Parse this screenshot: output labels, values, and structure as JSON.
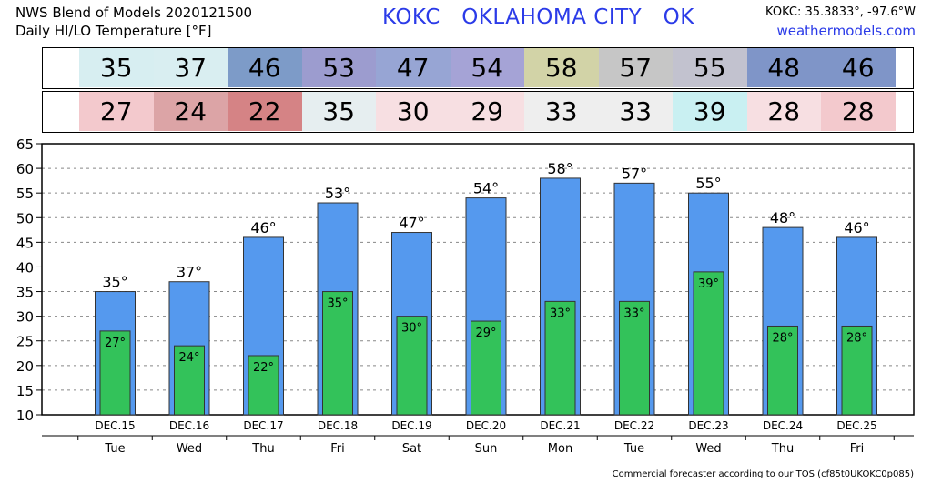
{
  "header": {
    "line1": "NWS Blend of Models 2020121500",
    "line2": "Daily HI/LO Temperature [°F]",
    "station": "KOKC   OKLAHOMA CITY   OK",
    "coords": "KOKC: 35.3833°, -97.6°W",
    "site": "weathermodels.com"
  },
  "colors": {
    "hi_bar": "#5599ee",
    "lo_bar": "#33c25a",
    "hi_cells": [
      "#d7eef1",
      "#d9eef1",
      "#7d9bc8",
      "#9c9ccf",
      "#97a5d4",
      "#a5a3d6",
      "#d2d3a7",
      "#c6c6c6",
      "#c2c2cf",
      "#7f95c8",
      "#7f95c8"
    ],
    "lo_cells": [
      "#f3c9cd",
      "#dca4a6",
      "#d58385",
      "#e6eef0",
      "#f7dfe2",
      "#f7dfe2",
      "#eeeeee",
      "#eeeeee",
      "#c9f0f2",
      "#f7dfe2",
      "#f3c9cd"
    ]
  },
  "hi_strip": [
    "35",
    "37",
    "46",
    "53",
    "47",
    "54",
    "58",
    "57",
    "55",
    "48",
    "46"
  ],
  "lo_strip": [
    "27",
    "24",
    "22",
    "35",
    "30",
    "29",
    "33",
    "33",
    "39",
    "28",
    "28"
  ],
  "chart_data": {
    "type": "bar",
    "categories": [
      "DEC.15",
      "DEC.16",
      "DEC.17",
      "DEC.18",
      "DEC.19",
      "DEC.20",
      "DEC.21",
      "DEC.22",
      "DEC.23",
      "DEC.24",
      "DEC.25"
    ],
    "weekdays": [
      "Tue",
      "Wed",
      "Thu",
      "Fri",
      "Sat",
      "Sun",
      "Mon",
      "Tue",
      "Wed",
      "Thu",
      "Fri"
    ],
    "series": [
      {
        "name": "HI",
        "values": [
          35,
          37,
          46,
          53,
          47,
          54,
          58,
          57,
          55,
          48,
          46
        ],
        "labels": [
          "35°",
          "37°",
          "46°",
          "53°",
          "47°",
          "54°",
          "58°",
          "57°",
          "55°",
          "48°",
          "46°"
        ]
      },
      {
        "name": "LO",
        "values": [
          27,
          24,
          22,
          35,
          30,
          29,
          33,
          33,
          39,
          28,
          28
        ],
        "labels": [
          "27°",
          "24°",
          "22°",
          "35°",
          "30°",
          "29°",
          "33°",
          "33°",
          "39°",
          "28°",
          "28°"
        ]
      }
    ],
    "ylim": [
      10,
      65
    ],
    "yticks": [
      10,
      15,
      20,
      25,
      30,
      35,
      40,
      45,
      50,
      55,
      60,
      65
    ],
    "ytick_labels": [
      "10",
      "15",
      "20",
      "25",
      "30",
      "35",
      "40",
      "45",
      "50",
      "55",
      "60",
      "65"
    ],
    "grid": true
  },
  "footer": "Commercial forecaster according to our TOS (cf85t0UKOKC0p085)"
}
